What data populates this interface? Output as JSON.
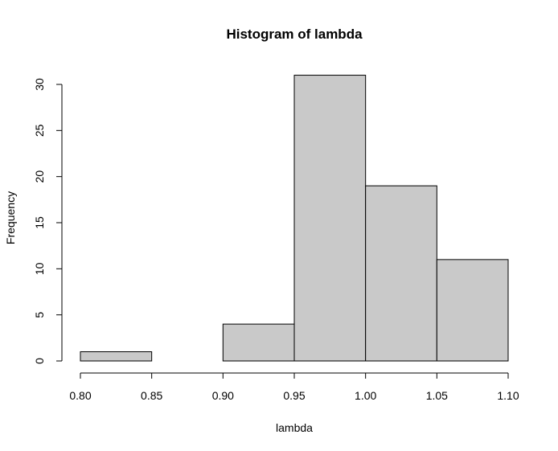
{
  "chart_data": {
    "type": "bar",
    "title": "Histogram of lambda",
    "xlabel": "lambda",
    "ylabel": "Frequency",
    "bins": [
      {
        "start": 0.8,
        "end": 0.85,
        "count": 1
      },
      {
        "start": 0.85,
        "end": 0.9,
        "count": 0
      },
      {
        "start": 0.9,
        "end": 0.95,
        "count": 4
      },
      {
        "start": 0.95,
        "end": 1.0,
        "count": 31
      },
      {
        "start": 1.0,
        "end": 1.05,
        "count": 19
      },
      {
        "start": 1.05,
        "end": 1.1,
        "count": 11
      }
    ],
    "xlim": [
      0.8,
      1.1
    ],
    "ylim": [
      0,
      31
    ],
    "xticks": [
      "0.80",
      "0.85",
      "0.90",
      "0.95",
      "1.00",
      "1.05",
      "1.10"
    ],
    "yticks": [
      "0",
      "5",
      "10",
      "15",
      "20",
      "25",
      "30"
    ],
    "grid": false,
    "colors": {
      "bar_fill": "#c9c9c9",
      "bar_stroke": "#000000"
    }
  }
}
